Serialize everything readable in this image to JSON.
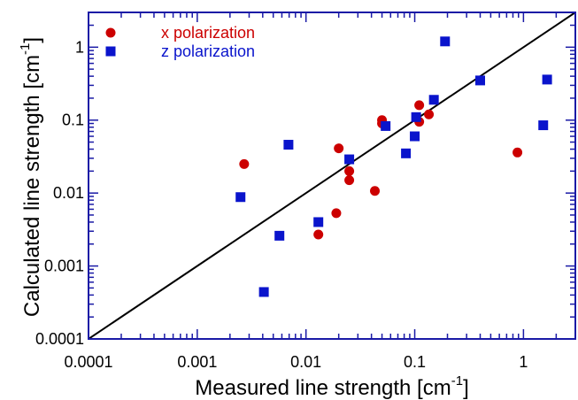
{
  "chart_data": {
    "type": "scatter",
    "title": "",
    "xlabel": "Measured line strength [cm",
    "ylabel": "Calculated line strength [cm",
    "label_unit_exponent": "-1",
    "label_close": "]",
    "x_scale": "log",
    "y_scale": "log",
    "xlim": [
      0.0001,
      3
    ],
    "ylim": [
      0.0001,
      3
    ],
    "grid": false,
    "legend_position": "top-left",
    "frame_color": "#1a1aa6",
    "x_ticks": [
      {
        "value": 0.0001,
        "label": "0.0001"
      },
      {
        "value": 0.001,
        "label": "0.001"
      },
      {
        "value": 0.01,
        "label": "0.01"
      },
      {
        "value": 0.1,
        "label": "0.1"
      },
      {
        "value": 1,
        "label": "1"
      }
    ],
    "y_ticks": [
      {
        "value": 0.0001,
        "label": "0.0001"
      },
      {
        "value": 0.001,
        "label": "0.001"
      },
      {
        "value": 0.01,
        "label": "0.01"
      },
      {
        "value": 0.1,
        "label": "0.1"
      },
      {
        "value": 1,
        "label": "1"
      }
    ],
    "reference_line": {
      "type": "y=x",
      "color": "#000000"
    },
    "series": [
      {
        "name": "x polarization",
        "marker": "circle",
        "color": "#cc0000",
        "points": [
          {
            "x": 0.0027,
            "y": 0.025
          },
          {
            "x": 0.013,
            "y": 0.0027
          },
          {
            "x": 0.019,
            "y": 0.0053
          },
          {
            "x": 0.02,
            "y": 0.041
          },
          {
            "x": 0.025,
            "y": 0.02
          },
          {
            "x": 0.025,
            "y": 0.015
          },
          {
            "x": 0.043,
            "y": 0.0107
          },
          {
            "x": 0.05,
            "y": 0.1
          },
          {
            "x": 0.05,
            "y": 0.09
          },
          {
            "x": 0.11,
            "y": 0.16
          },
          {
            "x": 0.11,
            "y": 0.095
          },
          {
            "x": 0.135,
            "y": 0.12
          },
          {
            "x": 0.88,
            "y": 0.036
          }
        ]
      },
      {
        "name": "z polarization",
        "marker": "square",
        "color": "#0a14cc",
        "points": [
          {
            "x": 0.0025,
            "y": 0.0088
          },
          {
            "x": 0.0041,
            "y": 0.00044
          },
          {
            "x": 0.0057,
            "y": 0.0026
          },
          {
            "x": 0.0069,
            "y": 0.046
          },
          {
            "x": 0.013,
            "y": 0.004
          },
          {
            "x": 0.025,
            "y": 0.029
          },
          {
            "x": 0.054,
            "y": 0.083
          },
          {
            "x": 0.083,
            "y": 0.035
          },
          {
            "x": 0.1,
            "y": 0.06
          },
          {
            "x": 0.103,
            "y": 0.11
          },
          {
            "x": 0.15,
            "y": 0.19
          },
          {
            "x": 0.19,
            "y": 1.2
          },
          {
            "x": 0.4,
            "y": 0.35
          },
          {
            "x": 1.52,
            "y": 0.085
          },
          {
            "x": 1.65,
            "y": 0.36
          }
        ]
      }
    ]
  }
}
